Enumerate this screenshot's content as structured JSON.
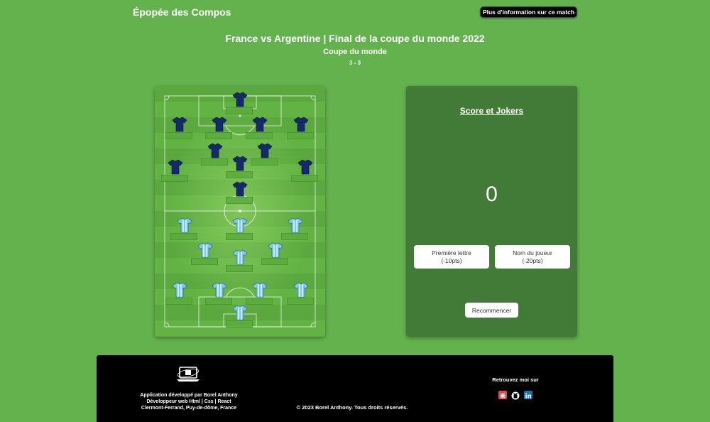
{
  "header": {
    "brand": "Épopée des Compos",
    "info_button": "Plus d'information sur ce match"
  },
  "match": {
    "title": "France vs Argentine | Final de la coupe du monde 2022",
    "competition": "Coupe du monde",
    "score": "3 - 3"
  },
  "panel": {
    "title": "Score et Jokers",
    "score": "0",
    "joker_first_letter": {
      "label": "Première lettre",
      "cost": "(-10pts)"
    },
    "joker_player_name": {
      "label": "Nom du joueur",
      "cost": "(-20pts)"
    },
    "restart": "Recommencer"
  },
  "colors": {
    "pitch": "#5aa83e",
    "team_top_shirt": "#152a6b",
    "team_bottom_shirt": "#7ec8ef",
    "panel": "#427b37",
    "background": "#64b24e"
  },
  "footer": {
    "desc_line1": "Application développé par Borel Anthony",
    "desc_line2": "Développeur web Html | Css | React",
    "desc_line3": "Clermont-Ferrand, Puy-de-dôme, France",
    "copyright": "© 2023 Borel Anthony. Tous droits réservés.",
    "social_title": "Retrouvez moi sur",
    "social_icons": [
      "portfolio-icon",
      "github-icon",
      "linkedin-icon"
    ]
  }
}
